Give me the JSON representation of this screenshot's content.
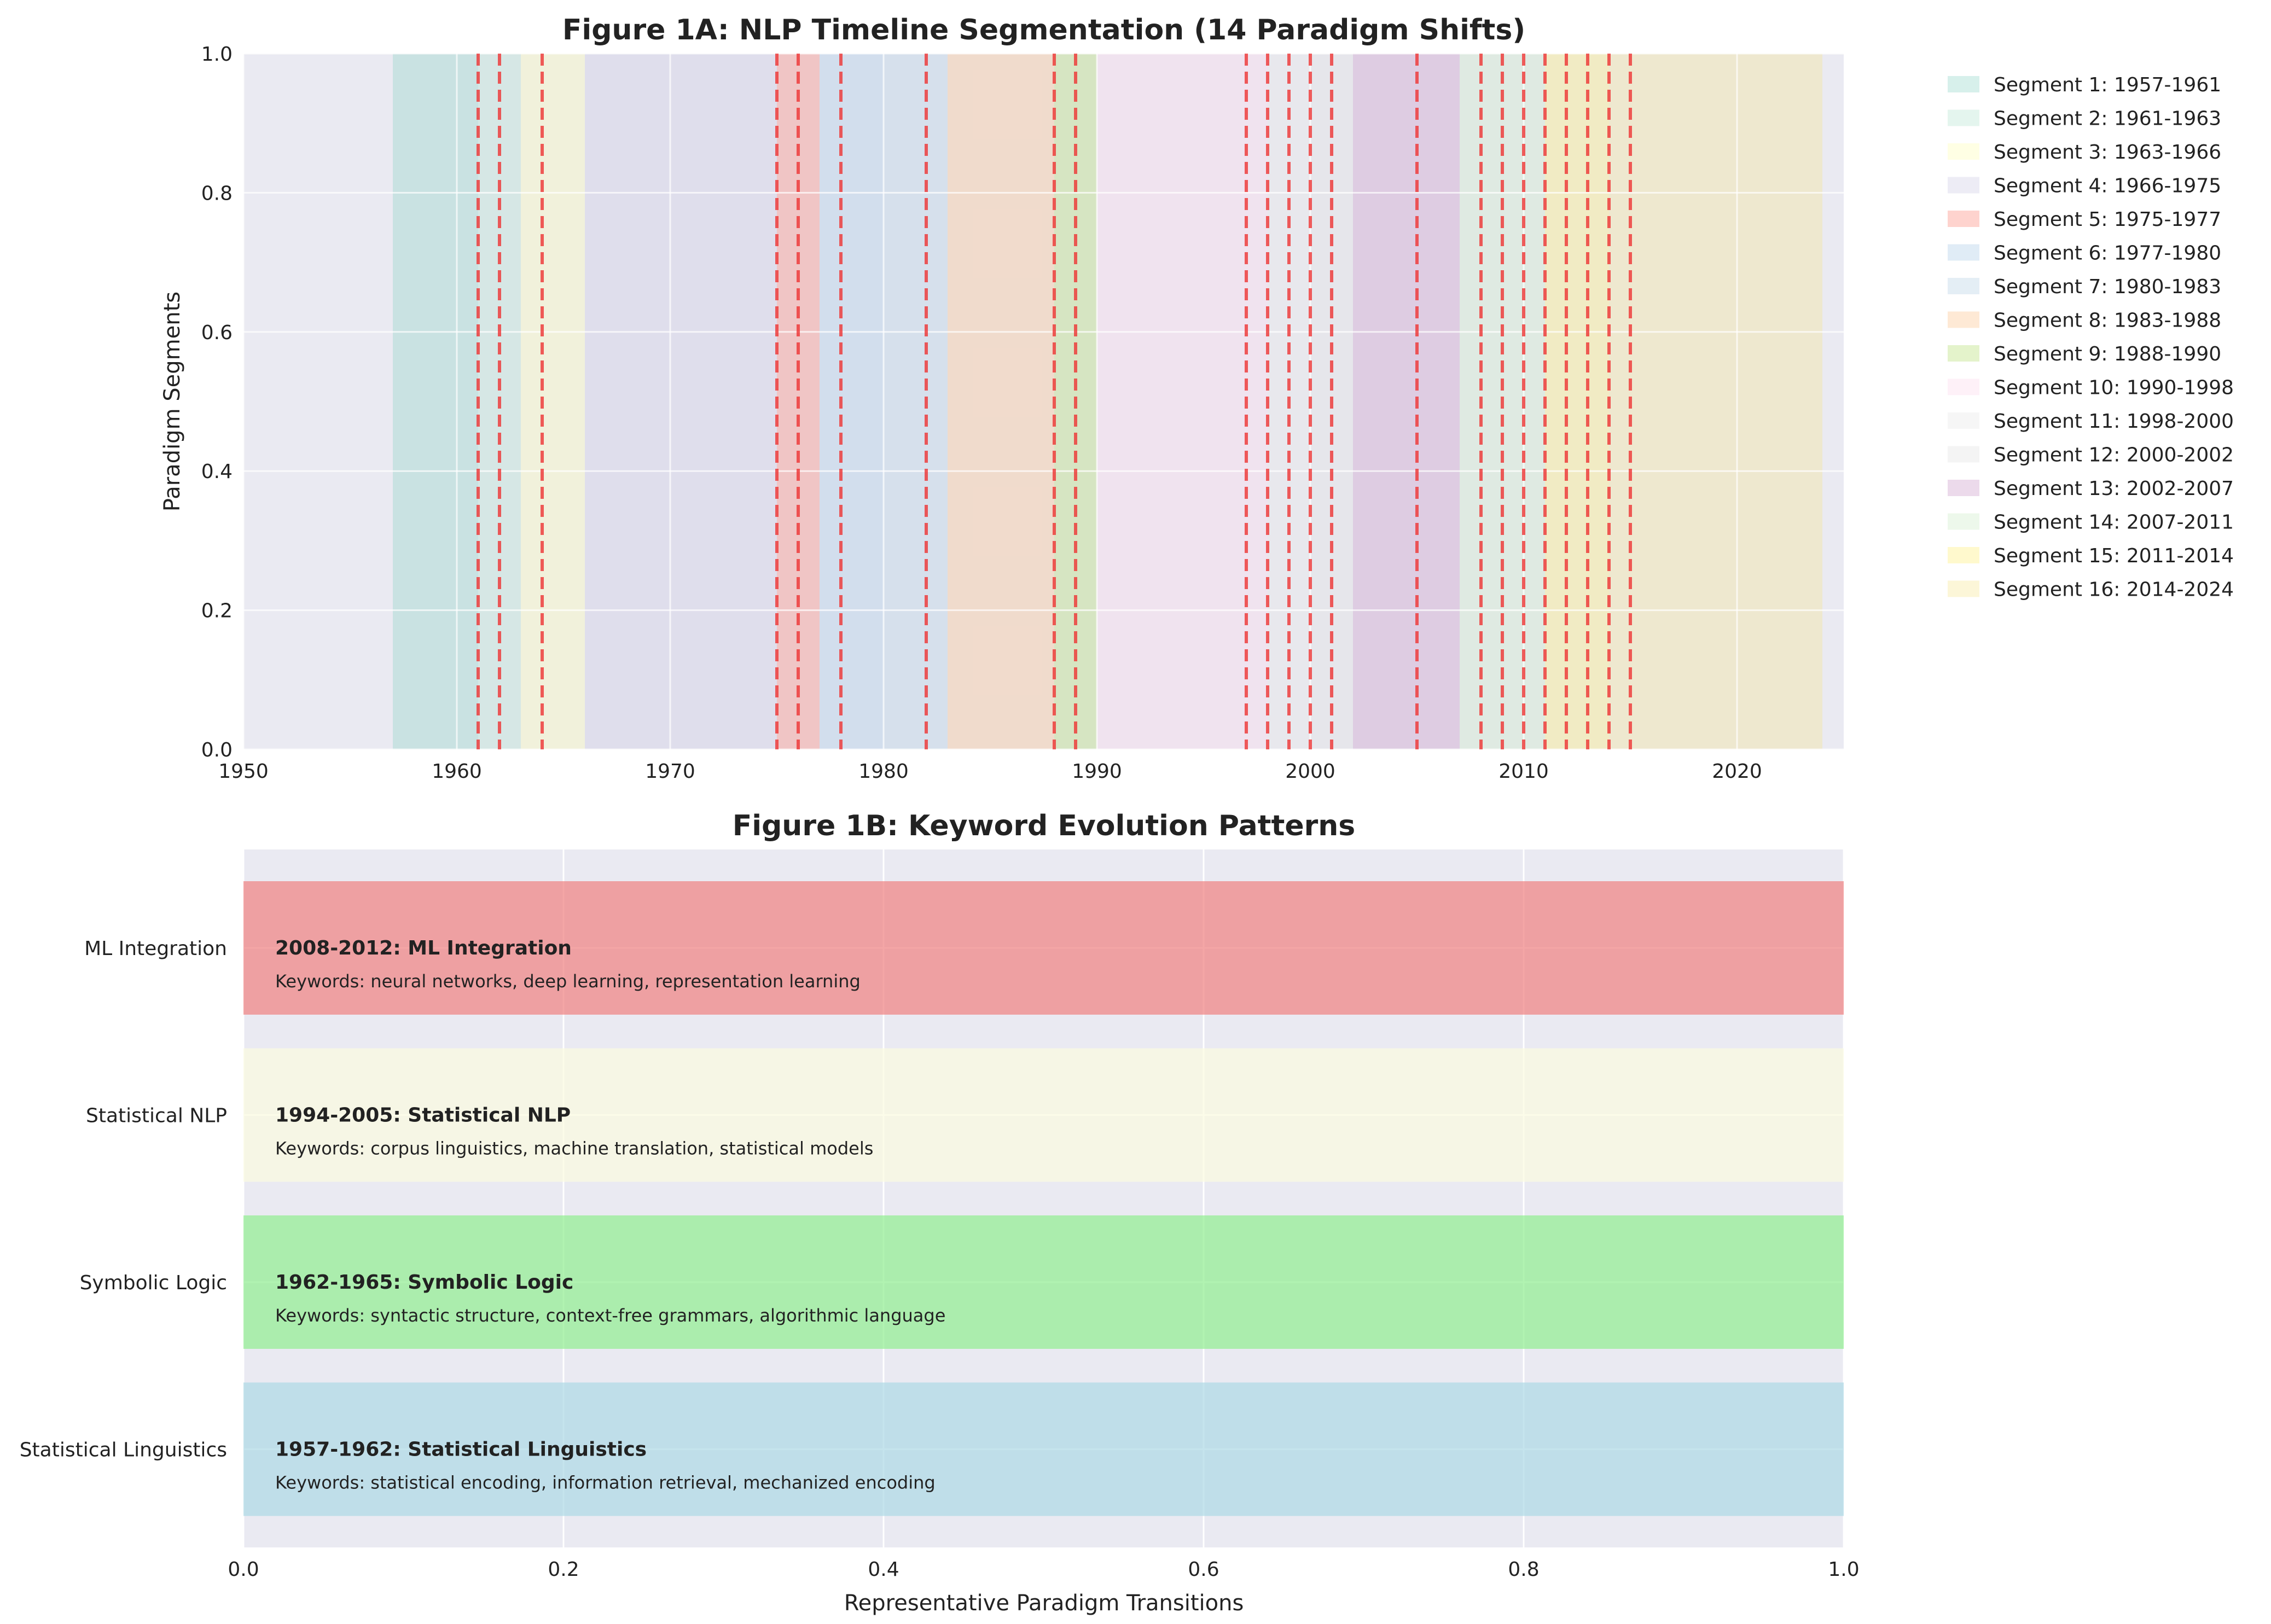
{
  "chart_data": [
    {
      "type": "timeline-spans",
      "title": "Figure 1A: NLP Timeline Segmentation (14 Paradigm Shifts)",
      "xlabel": "",
      "ylabel": "Paradigm Segments",
      "xlim": [
        1950,
        2025
      ],
      "ylim": [
        0,
        1
      ],
      "x_ticks": [
        "1950",
        "1960",
        "1970",
        "1980",
        "1990",
        "2000",
        "2010",
        "2020"
      ],
      "y_ticks": [
        "0.0",
        "0.2",
        "0.4",
        "0.6",
        "0.8",
        "1.0"
      ],
      "grid": true,
      "legend_position": "outside-right",
      "segments": [
        {
          "label": "Segment 1: 1957-1961",
          "start": 1957,
          "end": 1961,
          "color": "#8dd3c7"
        },
        {
          "label": "Segment 2: 1961-1963",
          "start": 1961,
          "end": 1963,
          "color": "#b3e2cd"
        },
        {
          "label": "Segment 3: 1963-1966",
          "start": 1963,
          "end": 1966,
          "color": "#ffffb3"
        },
        {
          "label": "Segment 4: 1966-1975",
          "start": 1966,
          "end": 1975,
          "color": "#cbc9e2"
        },
        {
          "label": "Segment 5: 1975-1977",
          "start": 1975,
          "end": 1977,
          "color": "#fb8072"
        },
        {
          "label": "Segment 6: 1977-1980",
          "start": 1977,
          "end": 1980,
          "color": "#a6c8e6"
        },
        {
          "label": "Segment 7: 1980-1983",
          "start": 1980,
          "end": 1983,
          "color": "#b3cde3"
        },
        {
          "label": "Segment 8: 1983-1988",
          "start": 1983,
          "end": 1988,
          "color": "#fdc086"
        },
        {
          "label": "Segment 9: 1988-1990",
          "start": 1988,
          "end": 1990,
          "color": "#b3de69"
        },
        {
          "label": "Segment 10: 1990-1998",
          "start": 1990,
          "end": 1998,
          "color": "#fbd7ea"
        },
        {
          "label": "Segment 11: 1998-2000",
          "start": 1998,
          "end": 2000,
          "color": "#e5e5e5"
        },
        {
          "label": "Segment 12: 2000-2002",
          "start": 2000,
          "end": 2002,
          "color": "#e0e0e0"
        },
        {
          "label": "Segment 13: 2002-2007",
          "start": 2002,
          "end": 2007,
          "color": "#c994c7"
        },
        {
          "label": "Segment 14: 2007-2011",
          "start": 2007,
          "end": 2011,
          "color": "#ccebc5"
        },
        {
          "label": "Segment 15: 2011-2014",
          "start": 2011,
          "end": 2014,
          "color": "#ffed6f"
        },
        {
          "label": "Segment 16: 2014-2024",
          "start": 2014,
          "end": 2024,
          "color": "#f6e48e"
        }
      ],
      "transition_lines": [
        1961,
        1962,
        1964,
        1975,
        1976,
        1978,
        1982,
        1988,
        1989,
        1997,
        1998,
        1999,
        2000,
        2001,
        2005,
        2008,
        2009,
        2010,
        2011,
        2012,
        2013,
        2014,
        2015
      ],
      "transition_line_color": "#ee3333"
    },
    {
      "type": "bar",
      "orientation": "horizontal",
      "title": "Figure 1B: Keyword Evolution Patterns",
      "xlabel": "Representative Paradigm Transitions",
      "ylabel": "",
      "xlim": [
        0,
        1
      ],
      "x_ticks": [
        "0.0",
        "0.2",
        "0.4",
        "0.6",
        "0.8",
        "1.0"
      ],
      "grid": true,
      "categories": [
        "ML Integration",
        "Statistical NLP",
        "Symbolic Logic",
        "Statistical Linguistics"
      ],
      "values": [
        1,
        1,
        1,
        1
      ],
      "bars": [
        {
          "category": "ML Integration",
          "value": 1,
          "color": "#f08080",
          "heading": "2008-2012: ML Integration",
          "keywords": "Keywords: neural networks, deep learning, representation learning"
        },
        {
          "category": "Statistical NLP",
          "value": 1,
          "color": "#fbfbe0",
          "heading": "1994-2005: Statistical NLP",
          "keywords": "Keywords: corpus linguistics, machine translation, statistical models"
        },
        {
          "category": "Symbolic Logic",
          "value": 1,
          "color": "#90ee90",
          "heading": "1962-1965: Symbolic Logic",
          "keywords": "Keywords: syntactic structure, context-free grammars, algorithmic language"
        },
        {
          "category": "Statistical Linguistics",
          "value": 1,
          "color": "#add8e6",
          "heading": "1957-1962: Statistical Linguistics",
          "keywords": "Keywords: statistical encoding, information retrieval, mechanized encoding"
        }
      ]
    }
  ]
}
